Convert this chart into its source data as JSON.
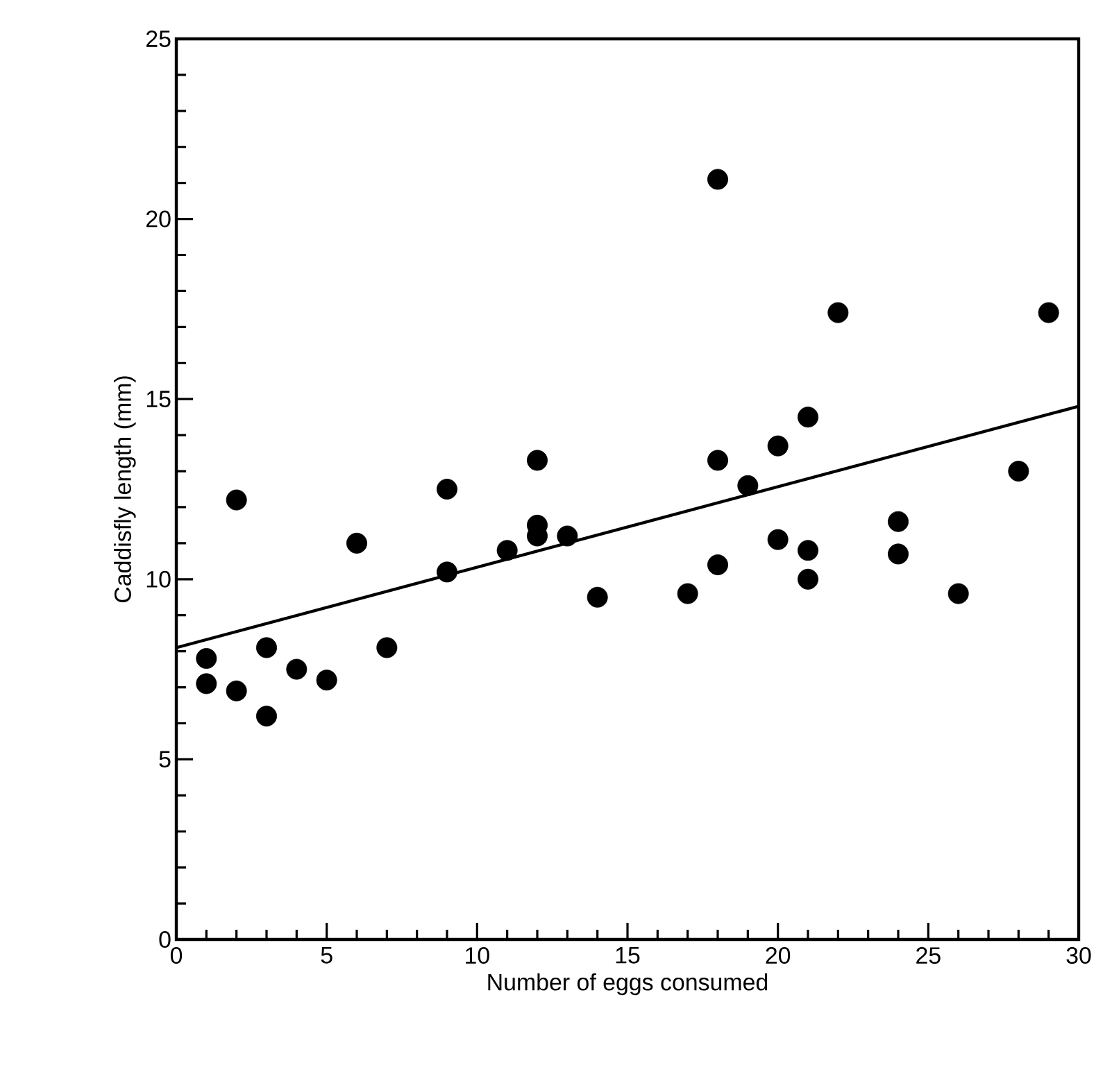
{
  "chart_data": {
    "type": "scatter",
    "xlabel": "Number of eggs consumed",
    "ylabel": "Caddisfly length (mm)",
    "xlim": [
      0,
      30
    ],
    "ylim": [
      0,
      25
    ],
    "xticks": [
      0,
      5,
      10,
      15,
      20,
      25,
      30
    ],
    "yticks": [
      0,
      5,
      10,
      15,
      20,
      25
    ],
    "grid": false,
    "series": [
      {
        "color": "#000000",
        "marker": "circle",
        "x": [
          1,
          1,
          2,
          2,
          3,
          3,
          4,
          5,
          6,
          7,
          9,
          9,
          11,
          12,
          12,
          12,
          13,
          14,
          17,
          18,
          18,
          18,
          19,
          20,
          20,
          21,
          21,
          21,
          22,
          24,
          24,
          26,
          28,
          29
        ],
        "values": [
          7.8,
          7.1,
          6.9,
          12.2,
          8.1,
          6.2,
          7.5,
          7.2,
          11.0,
          8.1,
          12.5,
          10.2,
          10.8,
          13.3,
          11.5,
          11.2,
          11.2,
          9.5,
          9.6,
          21.1,
          13.3,
          10.4,
          12.6,
          13.7,
          11.1,
          14.5,
          10.8,
          10.0,
          17.4,
          11.6,
          10.7,
          9.6,
          13.0,
          17.4
        ]
      },
      {
        "type": "line",
        "color": "#000000",
        "marker": "none",
        "line_style": "solid",
        "x": [
          0,
          30
        ],
        "values": [
          8.1,
          14.8
        ]
      }
    ]
  }
}
